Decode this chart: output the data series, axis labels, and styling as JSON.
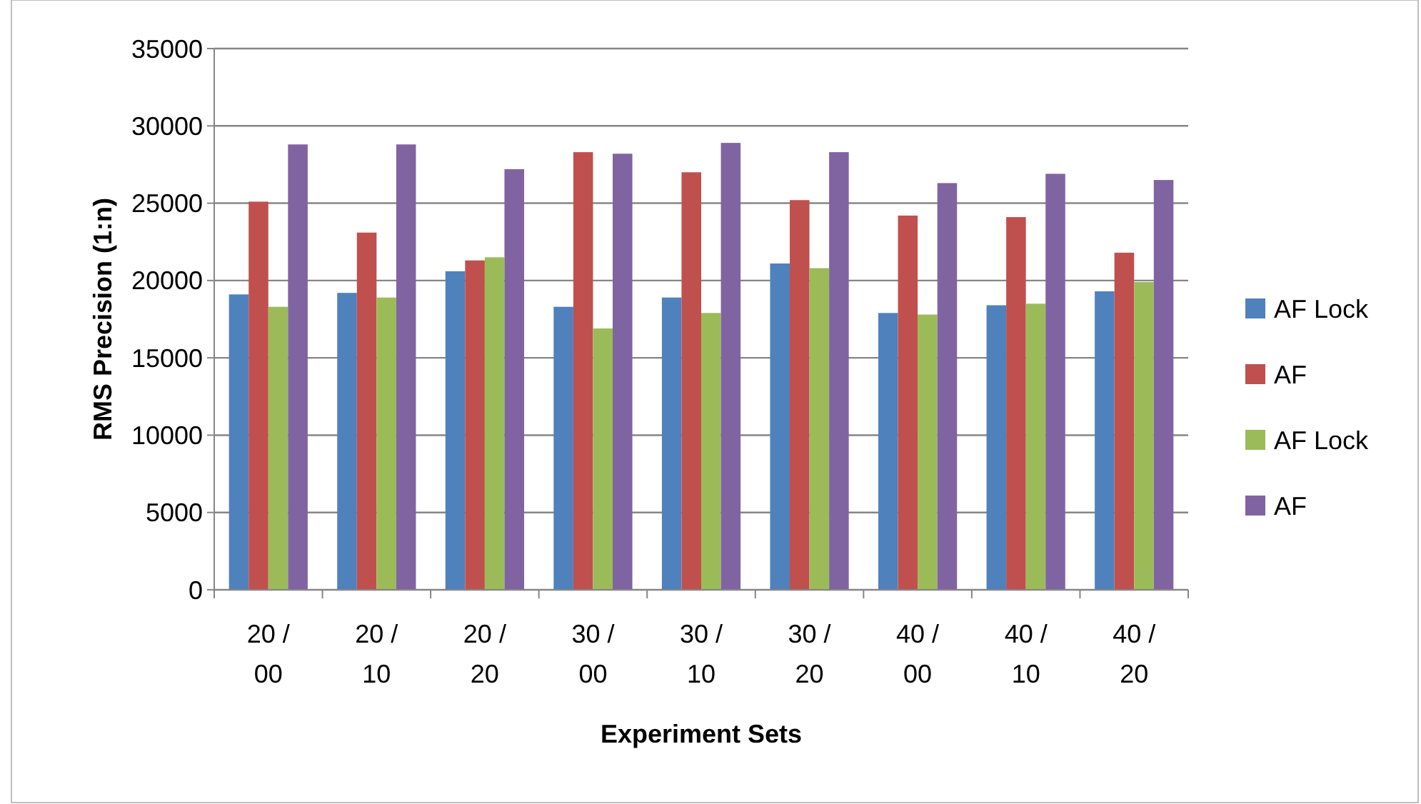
{
  "chart_data": {
    "type": "bar",
    "xlabel": "Experiment Sets",
    "ylabel": "RMS Precision (1:n)",
    "categories": [
      "20 / 00",
      "20 / 10",
      "20 / 20",
      "30 / 00",
      "30 / 10",
      "30 / 20",
      "40 / 00",
      "40 / 10",
      "40 / 20"
    ],
    "series": [
      {
        "name": "AF Lock",
        "color": "#4f81bd",
        "values": [
          19100,
          19200,
          20600,
          18300,
          18900,
          21100,
          17900,
          18400,
          19300
        ]
      },
      {
        "name": "AF",
        "color": "#c0504d",
        "values": [
          25100,
          23100,
          21300,
          28300,
          27000,
          25200,
          24200,
          24100,
          21800
        ]
      },
      {
        "name": "AF Lock",
        "color": "#9bbb59",
        "values": [
          18300,
          18900,
          21500,
          16900,
          17900,
          20800,
          17800,
          18500,
          19900
        ]
      },
      {
        "name": "AF",
        "color": "#8064a2",
        "values": [
          28800,
          28800,
          27200,
          28200,
          28900,
          28300,
          26300,
          26900,
          26500
        ]
      }
    ],
    "ylim": [
      0,
      35000
    ],
    "yticks": [
      0,
      5000,
      10000,
      15000,
      20000,
      25000,
      30000,
      35000
    ],
    "grid": "y",
    "legend": "right"
  }
}
